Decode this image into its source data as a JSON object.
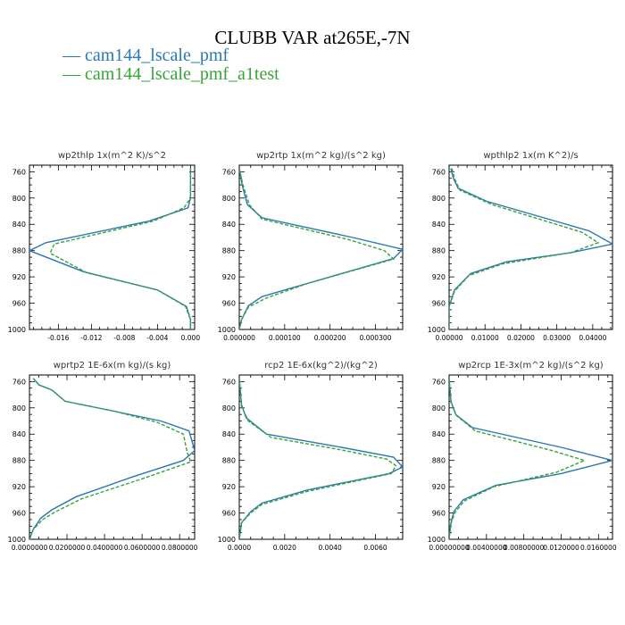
{
  "figure_title": "CLUBB VAR at265E,-7N",
  "legend": [
    {
      "text": "— cam144_lscale_pmf",
      "color": "#2b77b5"
    },
    {
      "text": "— cam144_lscale_pmf_a1test",
      "color": "#36a336"
    }
  ],
  "chart_data": [
    {
      "type": "line",
      "title": "wp2thlp  1x(m^2 K)/s^2",
      "xlim": [
        -0.0195,
        0.0005
      ],
      "xticks": [
        -0.016,
        -0.012,
        -0.008,
        -0.004,
        0.0
      ],
      "xticklabels": [
        "-0.016",
        "-0.012",
        "-0.008",
        "-0.004",
        "0.000"
      ],
      "ylim": [
        1000,
        750
      ],
      "yticks": [
        760,
        800,
        840,
        880,
        920,
        960,
        1000
      ],
      "series": [
        {
          "name": "cam144_lscale_pmf",
          "color": "#2b77b5",
          "dash": false,
          "x": [
            0.0,
            0.0,
            -0.0003,
            -0.005,
            -0.0175,
            -0.0195,
            -0.013,
            -0.004,
            -0.0005,
            0.0,
            0.0
          ],
          "y": [
            755,
            800,
            815,
            835,
            868,
            880,
            912,
            940,
            965,
            985,
            1000
          ]
        },
        {
          "name": "cam144_lscale_pmf_a1test",
          "color": "#36a336",
          "dash": true,
          "x": [
            0.0,
            0.0,
            -0.0008,
            -0.0045,
            -0.0165,
            -0.017,
            -0.0125,
            -0.004,
            -0.0006,
            0.0,
            0.0
          ],
          "y": [
            755,
            800,
            815,
            835,
            870,
            884,
            914,
            940,
            965,
            985,
            1000
          ]
        }
      ]
    },
    {
      "type": "line",
      "title": "wp2rtp  1x(m^2 kg)/(s^2 kg)",
      "xlim": [
        0.0,
        0.00036
      ],
      "xticks": [
        0.0,
        0.0001,
        0.0002,
        0.0003
      ],
      "xticklabels": [
        "0.000000",
        "0.000100",
        "0.000200",
        "0.000300"
      ],
      "ylim": [
        1000,
        750
      ],
      "yticks": [
        760,
        800,
        840,
        880,
        920,
        960,
        1000
      ],
      "series": [
        {
          "name": "cam144_lscale_pmf",
          "color": "#2b77b5",
          "dash": false,
          "x": [
            0.0,
            6e-06,
            1.8e-05,
            5e-05,
            0.00025,
            0.00036,
            0.00034,
            0.00016,
            5e-05,
            2e-05,
            5e-06,
            0.0
          ],
          "y": [
            755,
            780,
            810,
            830,
            860,
            878,
            892,
            928,
            950,
            964,
            985,
            1000
          ]
        },
        {
          "name": "cam144_lscale_pmf_a1test",
          "color": "#36a336",
          "dash": true,
          "x": [
            0.0,
            8e-06,
            2.2e-05,
            5e-05,
            0.00024,
            0.00032,
            0.00034,
            0.00015,
            6e-05,
            2e-05,
            5e-06,
            0.0
          ],
          "y": [
            755,
            780,
            810,
            832,
            863,
            880,
            893,
            930,
            952,
            966,
            985,
            1000
          ]
        }
      ]
    },
    {
      "type": "line",
      "title": "wpthlp2  1x(m K^2)/s",
      "xlim": [
        0.0,
        0.0455
      ],
      "xticks": [
        0.0,
        0.01,
        0.02,
        0.03,
        0.04
      ],
      "xticklabels": [
        "0.00000",
        "0.01000",
        "0.02000",
        "0.03000",
        "0.04000"
      ],
      "ylim": [
        1000,
        750
      ],
      "yticks": [
        760,
        800,
        840,
        880,
        920,
        960,
        1000
      ],
      "series": [
        {
          "name": "cam144_lscale_pmf",
          "color": "#2b77b5",
          "dash": false,
          "x": [
            0.0005,
            0.0012,
            0.0025,
            0.0105,
            0.039,
            0.0455,
            0.034,
            0.016,
            0.006,
            0.0015,
            0.0,
            0.0
          ],
          "y": [
            755,
            770,
            785,
            805,
            850,
            870,
            883,
            897,
            915,
            940,
            965,
            1000
          ]
        },
        {
          "name": "cam144_lscale_pmf_a1test",
          "color": "#36a336",
          "dash": true,
          "x": [
            0.0008,
            0.0015,
            0.003,
            0.012,
            0.037,
            0.0415,
            0.034,
            0.015,
            0.0055,
            0.0015,
            0.0,
            0.0
          ],
          "y": [
            755,
            770,
            788,
            810,
            852,
            868,
            883,
            900,
            918,
            942,
            966,
            1000
          ]
        }
      ]
    },
    {
      "type": "line",
      "title": "wprtp2  1E-6x(m kg)/(s kg)",
      "xlim": [
        0.0,
        0.088
      ],
      "xticks": [
        0.0,
        0.02,
        0.04,
        0.06,
        0.08
      ],
      "xticklabels": [
        "0.0000000",
        "0.0200000",
        "0.0400000",
        "0.0600000",
        "0.0800000"
      ],
      "ylim": [
        1000,
        750
      ],
      "yticks": [
        760,
        800,
        840,
        880,
        920,
        960,
        1000
      ],
      "series": [
        {
          "name": "cam144_lscale_pmf",
          "color": "#2b77b5",
          "dash": false,
          "x": [
            0.002,
            0.005,
            0.012,
            0.019,
            0.045,
            0.07,
            0.085,
            0.088,
            0.082,
            0.055,
            0.025,
            0.012,
            0.006,
            0.002,
            0.0
          ],
          "y": [
            755,
            765,
            773,
            790,
            805,
            820,
            835,
            865,
            880,
            905,
            935,
            955,
            968,
            985,
            1000
          ]
        },
        {
          "name": "cam144_lscale_pmf_a1test",
          "color": "#36a336",
          "dash": true,
          "x": [
            0.002,
            0.005,
            0.012,
            0.019,
            0.045,
            0.068,
            0.082,
            0.084,
            0.086,
            0.06,
            0.028,
            0.014,
            0.007,
            0.002,
            0.0
          ],
          "y": [
            755,
            765,
            773,
            790,
            805,
            822,
            840,
            868,
            882,
            908,
            938,
            958,
            970,
            985,
            1000
          ]
        }
      ]
    },
    {
      "type": "line",
      "title": "rcp2  1E-6x(kg^2)/(kg^2)",
      "xlim": [
        0.0,
        0.0072
      ],
      "xticks": [
        0.0,
        0.002,
        0.004,
        0.006
      ],
      "xticklabels": [
        "0.0000",
        "0.0020",
        "0.0040",
        "0.0060"
      ],
      "ylim": [
        1000,
        750
      ],
      "yticks": [
        760,
        800,
        840,
        880,
        920,
        960,
        1000
      ],
      "series": [
        {
          "name": "cam144_lscale_pmf",
          "color": "#2b77b5",
          "dash": false,
          "x": [
            0.0,
            0.0001,
            0.0003,
            0.0012,
            0.0045,
            0.0068,
            0.0072,
            0.0066,
            0.003,
            0.001,
            0.0005,
            0.0001,
            0.0
          ],
          "y": [
            755,
            795,
            815,
            840,
            860,
            875,
            890,
            900,
            925,
            945,
            958,
            975,
            1000
          ]
        },
        {
          "name": "cam144_lscale_pmf_a1test",
          "color": "#36a336",
          "dash": true,
          "x": [
            0.0,
            0.0001,
            0.0004,
            0.0014,
            0.0045,
            0.0065,
            0.0069,
            0.0067,
            0.003,
            0.001,
            0.0005,
            0.0001,
            0.0
          ],
          "y": [
            755,
            798,
            820,
            845,
            864,
            878,
            888,
            900,
            927,
            947,
            960,
            975,
            1000
          ]
        }
      ]
    },
    {
      "type": "line",
      "title": "wp2rcp  1E-3x(m^2 kg)/(s^2 kg)",
      "xlim": [
        0.0,
        0.0175
      ],
      "xticks": [
        0.0,
        0.004,
        0.008,
        0.012,
        0.016
      ],
      "xticklabels": [
        "0.00000000",
        "0.00400000",
        "0.00800000",
        "0.0120000",
        "0.0160000"
      ],
      "ylim": [
        1000,
        750
      ],
      "yticks": [
        760,
        800,
        840,
        880,
        920,
        960,
        1000
      ],
      "series": [
        {
          "name": "cam144_lscale_pmf",
          "color": "#2b77b5",
          "dash": false,
          "x": [
            0.0,
            0.0002,
            0.0007,
            0.0025,
            0.012,
            0.0175,
            0.012,
            0.005,
            0.0015,
            0.0005,
            0.0002,
            0.0
          ],
          "y": [
            755,
            790,
            810,
            830,
            860,
            880,
            900,
            918,
            940,
            958,
            975,
            1000
          ]
        },
        {
          "name": "cam144_lscale_pmf_a1test",
          "color": "#36a336",
          "dash": true,
          "x": [
            0.0,
            0.0002,
            0.0008,
            0.0028,
            0.011,
            0.0145,
            0.0115,
            0.0048,
            0.0016,
            0.0006,
            0.0002,
            0.0
          ],
          "y": [
            755,
            792,
            812,
            835,
            865,
            880,
            898,
            920,
            942,
            960,
            976,
            1000
          ]
        }
      ]
    }
  ]
}
